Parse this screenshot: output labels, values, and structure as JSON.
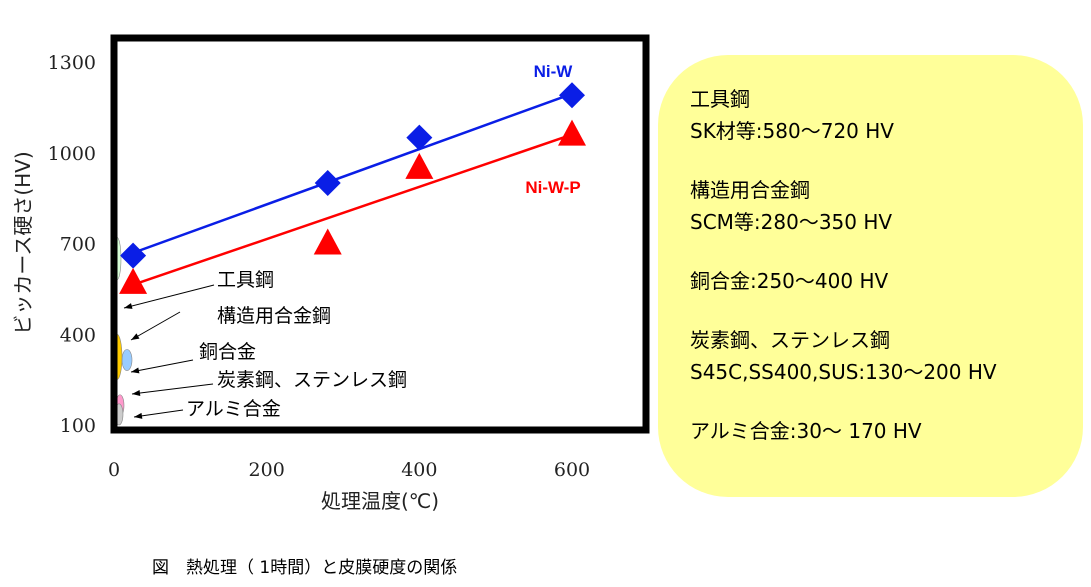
{
  "chart_data": {
    "type": "line",
    "title": "",
    "xlabel": "処理温度(℃)",
    "ylabel": "ビッカース硬さ(HV)",
    "xlim": [
      0,
      700
    ],
    "ylim": [
      100,
      1400
    ],
    "x_ticks": [
      0,
      200,
      400,
      600
    ],
    "y_ticks": [
      100,
      400,
      700,
      1000,
      1300
    ],
    "grid": false,
    "series": [
      {
        "name": "Ni-W",
        "marker": "diamond",
        "color": "#0a1ee6",
        "x": [
          25,
          280,
          400,
          600
        ],
        "y": [
          660,
          900,
          1050,
          1190
        ],
        "fit": [
          [
            15,
            660
          ],
          [
            600,
            1195
          ]
        ]
      },
      {
        "name": "Ni-W-P",
        "marker": "triangle",
        "color": "#ff0000",
        "x": [
          25,
          280,
          400,
          600
        ],
        "y": [
          570,
          700,
          950,
          1060
        ],
        "fit": [
          [
            15,
            555
          ],
          [
            600,
            1060
          ]
        ]
      }
    ],
    "range_bars": [
      {
        "label": "工具鋼",
        "low": 580,
        "high": 720,
        "color": "#d8ffd8"
      },
      {
        "label": "構造用合金鋼",
        "low": 280,
        "high": 350,
        "color": "#99ccff"
      },
      {
        "label": "銅合金",
        "low": 250,
        "high": 400,
        "color": "#ffcc00"
      },
      {
        "label": "炭素鋼、ステンレス鋼",
        "low": 130,
        "high": 200,
        "color": "#ff99cc"
      },
      {
        "label": "アルミ合金",
        "low": 30,
        "high": 170,
        "color": "#cccccc"
      }
    ]
  },
  "info_box": {
    "items": [
      {
        "name": "工具鋼",
        "value": "SK材等:580～720 HV"
      },
      {
        "name": "構造用合金鋼",
        "value": "SCM等:280～350 HV"
      },
      {
        "name": "銅合金:250～400 HV",
        "value": ""
      },
      {
        "name": "炭素鋼、ステンレス鋼",
        "value": "S45C,SS400,SUS:130～200 HV"
      },
      {
        "name": "アルミ合金:30～ 170 HV",
        "value": ""
      }
    ]
  },
  "caption": "図　熱処理（ 1時間）と皮膜硬度の関係",
  "colors": {
    "ni_w": "#0a1ee6",
    "ni_w_p": "#ff0000",
    "info_box_bg": "#ffff99"
  }
}
